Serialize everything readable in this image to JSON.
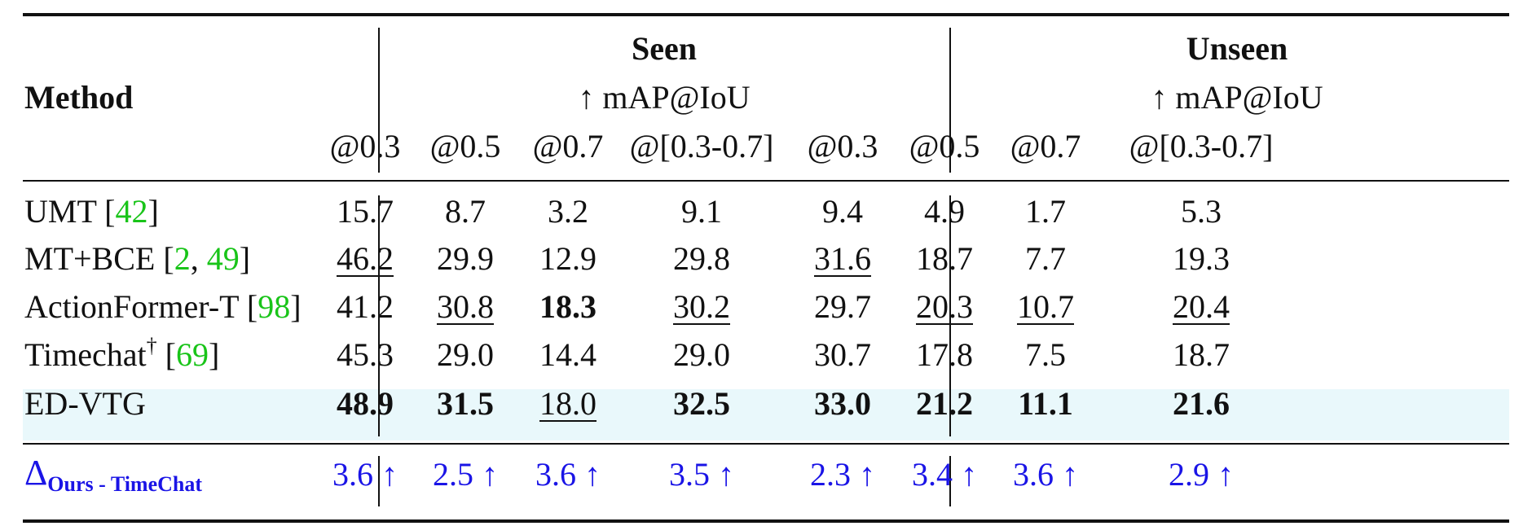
{
  "header": {
    "method": "Method",
    "seen": {
      "title": "Seen",
      "metric": "↑ mAP@IoU"
    },
    "unseen": {
      "title": "Unseen",
      "metric": "↑ mAP@IoU"
    },
    "thresholds": [
      "@0.3",
      "@0.5",
      "@0.7",
      "@[0.3-0.7]",
      "@0.3",
      "@0.5",
      "@0.7",
      "@[0.3-0.7]"
    ]
  },
  "rows": [
    {
      "method": "UMT",
      "marker": "",
      "citations": [
        "42"
      ],
      "highlight": false,
      "cells": [
        {
          "value": "15.7",
          "style": "normal"
        },
        {
          "value": "8.7",
          "style": "normal"
        },
        {
          "value": "3.2",
          "style": "normal"
        },
        {
          "value": "9.1",
          "style": "normal"
        },
        {
          "value": "9.4",
          "style": "normal"
        },
        {
          "value": "4.9",
          "style": "normal"
        },
        {
          "value": "1.7",
          "style": "normal"
        },
        {
          "value": "5.3",
          "style": "normal"
        }
      ]
    },
    {
      "method": "MT+BCE",
      "marker": "",
      "citations": [
        "2",
        "49"
      ],
      "highlight": false,
      "cells": [
        {
          "value": "46.2",
          "style": "underline"
        },
        {
          "value": "29.9",
          "style": "normal"
        },
        {
          "value": "12.9",
          "style": "normal"
        },
        {
          "value": "29.8",
          "style": "normal"
        },
        {
          "value": "31.6",
          "style": "underline"
        },
        {
          "value": "18.7",
          "style": "normal"
        },
        {
          "value": "7.7",
          "style": "normal"
        },
        {
          "value": "19.3",
          "style": "normal"
        }
      ]
    },
    {
      "method": "ActionFormer-T",
      "marker": "",
      "citations": [
        "98"
      ],
      "highlight": false,
      "cells": [
        {
          "value": "41.2",
          "style": "normal"
        },
        {
          "value": "30.8",
          "style": "underline"
        },
        {
          "value": "18.3",
          "style": "bold"
        },
        {
          "value": "30.2",
          "style": "underline"
        },
        {
          "value": "29.7",
          "style": "normal"
        },
        {
          "value": "20.3",
          "style": "underline"
        },
        {
          "value": "10.7",
          "style": "underline"
        },
        {
          "value": "20.4",
          "style": "underline"
        }
      ]
    },
    {
      "method": "Timechat",
      "marker": "†",
      "citations": [
        "69"
      ],
      "highlight": false,
      "cells": [
        {
          "value": "45.3",
          "style": "normal"
        },
        {
          "value": "29.0",
          "style": "normal"
        },
        {
          "value": "14.4",
          "style": "normal"
        },
        {
          "value": "29.0",
          "style": "normal"
        },
        {
          "value": "30.7",
          "style": "normal"
        },
        {
          "value": "17.8",
          "style": "normal"
        },
        {
          "value": "7.5",
          "style": "normal"
        },
        {
          "value": "18.7",
          "style": "normal"
        }
      ]
    },
    {
      "method": "ED-VTG",
      "marker": "",
      "citations": [],
      "highlight": true,
      "cells": [
        {
          "value": "48.9",
          "style": "bold"
        },
        {
          "value": "31.5",
          "style": "bold"
        },
        {
          "value": "18.0",
          "style": "underline"
        },
        {
          "value": "32.5",
          "style": "bold"
        },
        {
          "value": "33.0",
          "style": "bold"
        },
        {
          "value": "21.2",
          "style": "bold"
        },
        {
          "value": "11.1",
          "style": "bold"
        },
        {
          "value": "21.6",
          "style": "bold"
        }
      ]
    }
  ],
  "delta": {
    "symbol": "Δ",
    "subscript": "Ours - TimeChat",
    "values": [
      "3.6 ↑",
      "2.5 ↑",
      "3.6 ↑",
      "3.5 ↑",
      "2.3 ↑",
      "3.4 ↑",
      "3.6 ↑",
      "2.9 ↑"
    ]
  },
  "colors": {
    "citation": "#19c419",
    "delta": "#1a14e6",
    "highlight_row": "#e9f8fb",
    "text": "#111111"
  }
}
